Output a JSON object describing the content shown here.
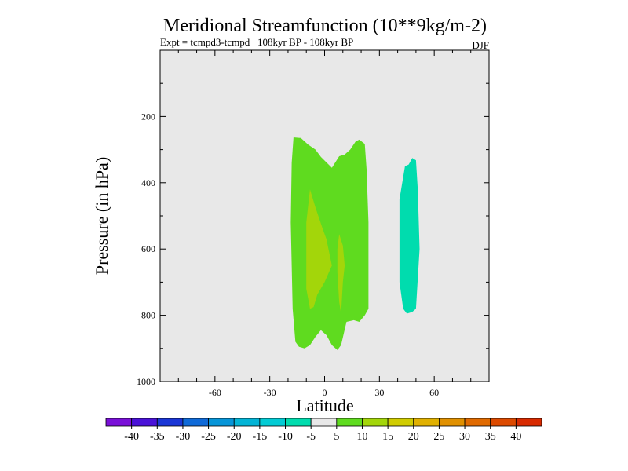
{
  "chart_data": {
    "type": "contour",
    "title": "Meridional Streamfunction (10**9kg/m-2)",
    "subtitle": "Expt = tcmpd3-tcmpd   108kyr BP - 108kyr BP",
    "season": "DJF",
    "xlabel": "Latitude",
    "ylabel": "Pressure (in hPa)",
    "xlim": [
      -90,
      90
    ],
    "ylim": [
      1000,
      0
    ],
    "x_ticks": [
      -60,
      -30,
      0,
      30,
      60
    ],
    "x_tick_labels": [
      "-60",
      "-30",
      "0",
      "30",
      "60"
    ],
    "y_ticks": [
      200,
      400,
      600,
      800,
      1000
    ],
    "y_tick_labels": [
      "200",
      "400",
      "600",
      "800",
      "1000"
    ],
    "background_color": "#e8e8e8",
    "regions": [
      {
        "name": "positive-5-10",
        "level_range": [
          5,
          10
        ],
        "color": "#5fdb1f",
        "outline": [
          [
            -17,
            263
          ],
          [
            -13,
            265
          ],
          [
            -9,
            285
          ],
          [
            -5,
            300
          ],
          [
            -2,
            322
          ],
          [
            4,
            355
          ],
          [
            8,
            320
          ],
          [
            11,
            315
          ],
          [
            14,
            300
          ],
          [
            17,
            275
          ],
          [
            19,
            270
          ],
          [
            22,
            283
          ],
          [
            23,
            360
          ],
          [
            24,
            520
          ],
          [
            24,
            780
          ],
          [
            22,
            800
          ],
          [
            19,
            820
          ],
          [
            16,
            815
          ],
          [
            12,
            820
          ],
          [
            9,
            890
          ],
          [
            7,
            905
          ],
          [
            4,
            890
          ],
          [
            1,
            860
          ],
          [
            -2,
            845
          ],
          [
            -5,
            865
          ],
          [
            -8,
            890
          ],
          [
            -11,
            900
          ],
          [
            -14,
            895
          ],
          [
            -16,
            880
          ],
          [
            -17.5,
            780
          ],
          [
            -18.5,
            520
          ],
          [
            -18,
            340
          ]
        ]
      },
      {
        "name": "positive-10-15-left",
        "level_range": [
          10,
          15
        ],
        "color": "#a3d60a",
        "outline": [
          [
            -8,
            420
          ],
          [
            -5,
            475
          ],
          [
            -1,
            540
          ],
          [
            1,
            570
          ],
          [
            4,
            650
          ],
          [
            0,
            700
          ],
          [
            -4,
            738
          ],
          [
            -6,
            775
          ],
          [
            -8,
            780
          ],
          [
            -10,
            720
          ],
          [
            -10,
            520
          ]
        ]
      },
      {
        "name": "positive-10-15-right",
        "level_range": [
          10,
          15
        ],
        "color": "#a3d60a",
        "outline": [
          [
            8,
            555
          ],
          [
            10,
            590
          ],
          [
            11,
            650
          ],
          [
            10,
            700
          ],
          [
            9,
            795
          ],
          [
            8,
            760
          ],
          [
            7,
            670
          ],
          [
            7,
            600
          ]
        ]
      },
      {
        "name": "negative-5-10",
        "level_range": [
          -10,
          -5
        ],
        "color": "#00dcae",
        "outline": [
          [
            44,
            350
          ],
          [
            46,
            345
          ],
          [
            48,
            325
          ],
          [
            50,
            332
          ],
          [
            51,
            420
          ],
          [
            52,
            600
          ],
          [
            50,
            780
          ],
          [
            48,
            790
          ],
          [
            45,
            795
          ],
          [
            43,
            780
          ],
          [
            41,
            700
          ],
          [
            41,
            450
          ]
        ]
      }
    ],
    "colorbar": {
      "levels": [
        -40,
        -35,
        -30,
        -25,
        -20,
        -15,
        -10,
        -5,
        5,
        10,
        15,
        20,
        25,
        30,
        35,
        40
      ],
      "labels": [
        "-40",
        "-35",
        "-30",
        "-25",
        "-20",
        "-15",
        "-10",
        "-5",
        "5",
        "10",
        "15",
        "20",
        "25",
        "30",
        "35",
        "40"
      ],
      "colors": [
        "#7a10d8",
        "#4a12d8",
        "#1a36d6",
        "#0f6ad8",
        "#0795d8",
        "#03b4d6",
        "#03cbd4",
        "#00dcae",
        "#e8e8e8",
        "#5fdb1f",
        "#a3d60a",
        "#d0cc00",
        "#e0b000",
        "#e09000",
        "#e06a00",
        "#dc4a00",
        "#d82a00"
      ]
    }
  }
}
